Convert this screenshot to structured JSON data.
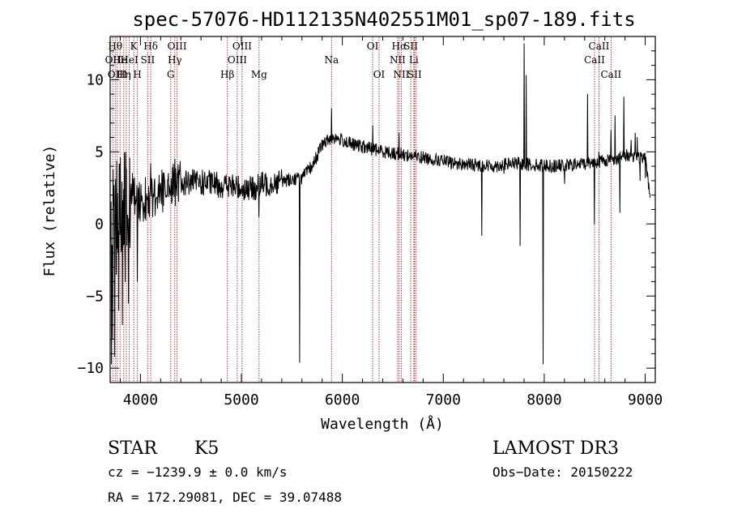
{
  "chart_data": {
    "type": "line",
    "title": "spec-57076-HD112135N402551M01_sp07-189.fits",
    "xlabel": "Wavelength (Å)",
    "ylabel": "Flux (relative)",
    "xlim": [
      3700,
      9100
    ],
    "ylim": [
      -11,
      13
    ],
    "xticks": [
      4000,
      5000,
      6000,
      7000,
      8000,
      9000
    ],
    "yticks": [
      -10,
      -5,
      0,
      5,
      10
    ],
    "ytick_labels": [
      "−10",
      "−5",
      "0",
      "5",
      "10"
    ],
    "spectrum_anchors": [
      [
        3700,
        0.0
      ],
      [
        3750,
        1.0
      ],
      [
        3800,
        1.5
      ],
      [
        3900,
        1.8
      ],
      [
        4000,
        1.5
      ],
      [
        4100,
        2.0
      ],
      [
        4200,
        2.3
      ],
      [
        4300,
        2.6
      ],
      [
        4400,
        2.8
      ],
      [
        4500,
        2.9
      ],
      [
        4700,
        2.8
      ],
      [
        4900,
        2.6
      ],
      [
        5000,
        2.5
      ],
      [
        5100,
        2.4
      ],
      [
        5200,
        2.7
      ],
      [
        5400,
        3.0
      ],
      [
        5600,
        3.2
      ],
      [
        5700,
        4.0
      ],
      [
        5800,
        5.5
      ],
      [
        5900,
        6.0
      ],
      [
        6000,
        5.8
      ],
      [
        6100,
        5.5
      ],
      [
        6300,
        5.2
      ],
      [
        6500,
        4.9
      ],
      [
        6700,
        4.7
      ],
      [
        6900,
        4.5
      ],
      [
        7100,
        4.2
      ],
      [
        7300,
        4.1
      ],
      [
        7500,
        4.0
      ],
      [
        7700,
        4.2
      ],
      [
        7900,
        4.1
      ],
      [
        8100,
        4.0
      ],
      [
        8300,
        4.1
      ],
      [
        8500,
        4.3
      ],
      [
        8700,
        4.5
      ],
      [
        8850,
        4.8
      ],
      [
        9000,
        4.5
      ],
      [
        9050,
        2.0
      ]
    ],
    "spectrum_features": [
      [
        3712,
        -9.7
      ],
      [
        3725,
        -8.0
      ],
      [
        3745,
        -9.2
      ],
      [
        3760,
        -3.5
      ],
      [
        3785,
        -6.0
      ],
      [
        3800,
        4.6
      ],
      [
        3820,
        -7.0
      ],
      [
        3850,
        -4.0
      ],
      [
        3880,
        -5.5
      ],
      [
        3920,
        3.5
      ],
      [
        3968,
        -4.0
      ],
      [
        4100,
        4.2
      ],
      [
        4340,
        4.5
      ],
      [
        5175,
        0.5
      ],
      [
        5577,
        -9.6
      ],
      [
        5893,
        8.0
      ],
      [
        6300,
        6.8
      ],
      [
        6563,
        6.3
      ],
      [
        6870,
        4.8
      ],
      [
        7380,
        -0.8
      ],
      [
        7600,
        3.5
      ],
      [
        7760,
        -1.5
      ],
      [
        7800,
        12.5
      ],
      [
        7820,
        10.3
      ],
      [
        7990,
        -9.7
      ],
      [
        8200,
        2.8
      ],
      [
        8430,
        9.0
      ],
      [
        8498,
        0.0
      ],
      [
        8542,
        5.0
      ],
      [
        8662,
        6.5
      ],
      [
        8700,
        7.5
      ],
      [
        8750,
        0.8
      ],
      [
        8790,
        8.8
      ],
      [
        8860,
        5.8
      ],
      [
        8900,
        6.3
      ],
      [
        8920,
        6.0
      ],
      [
        8950,
        3.0
      ],
      [
        9000,
        3.2
      ]
    ],
    "noise": {
      "seed": 57076,
      "early_amplitude": 1.6,
      "blue_amplitude": 0.9,
      "red_amplitude": 0.45
    },
    "spectral_lines": [
      {
        "wavelength": 3750,
        "label": "Hθ",
        "row": 1
      },
      {
        "wavelength": 3726,
        "label": "OII",
        "row": 2
      },
      {
        "wavelength": 3798,
        "label": "He",
        "row": 2
      },
      {
        "wavelength": 3770,
        "label": "OIII",
        "row": 3
      },
      {
        "wavelength": 3835,
        "label": "Hη",
        "row": 3
      },
      {
        "wavelength": 3860,
        "label": "",
        "row": 0
      },
      {
        "wavelength": 3934,
        "label": "K",
        "row": 1
      },
      {
        "wavelength": 3889,
        "label": "HeI",
        "row": 2
      },
      {
        "wavelength": 3970,
        "label": "H",
        "row": 3
      },
      {
        "wavelength": 4072,
        "label": "SII",
        "row": 2
      },
      {
        "wavelength": 4102,
        "label": "Hδ",
        "row": 1
      },
      {
        "wavelength": 4300,
        "label": "G",
        "row": 3
      },
      {
        "wavelength": 4340,
        "label": "Hγ",
        "row": 2
      },
      {
        "wavelength": 4363,
        "label": "OIII",
        "row": 1
      },
      {
        "wavelength": 4861,
        "label": "Hβ",
        "row": 3
      },
      {
        "wavelength": 4959,
        "label": "OIII",
        "row": 2
      },
      {
        "wavelength": 5007,
        "label": "OIII",
        "row": 1
      },
      {
        "wavelength": 5175,
        "label": "Mg",
        "row": 3
      },
      {
        "wavelength": 5893,
        "label": "Na",
        "row": 2
      },
      {
        "wavelength": 6300,
        "label": "OI",
        "row": 1
      },
      {
        "wavelength": 6364,
        "label": "OI",
        "row": 3
      },
      {
        "wavelength": 6548,
        "label": "NII",
        "row": 2
      },
      {
        "wavelength": 6563,
        "label": "Hα",
        "row": 1
      },
      {
        "wavelength": 6584,
        "label": "NII",
        "row": 3
      },
      {
        "wavelength": 6678,
        "label": "SII",
        "row": 1
      },
      {
        "wavelength": 6708,
        "label": "Li",
        "row": 2
      },
      {
        "wavelength": 6716,
        "label": "SII",
        "row": 3
      },
      {
        "wavelength": 6731,
        "label": "",
        "row": 0
      },
      {
        "wavelength": 8498,
        "label": "CaII",
        "row": 2
      },
      {
        "wavelength": 8542,
        "label": "CaII",
        "row": 1
      },
      {
        "wavelength": 8662,
        "label": "CaII",
        "row": 3
      }
    ],
    "colors": {
      "spectrum": "#000000",
      "lines": "#b22222",
      "axes": "#000000"
    }
  },
  "info": {
    "object_type": "STAR",
    "subclass": "K5",
    "survey": "LAMOST DR3",
    "velocity": "cz = −1239.9 ± 0.0 km/s",
    "obs_date": "Obs−Date: 20150222",
    "coordinates": "RA = 172.29081, DEC =  39.07488"
  }
}
